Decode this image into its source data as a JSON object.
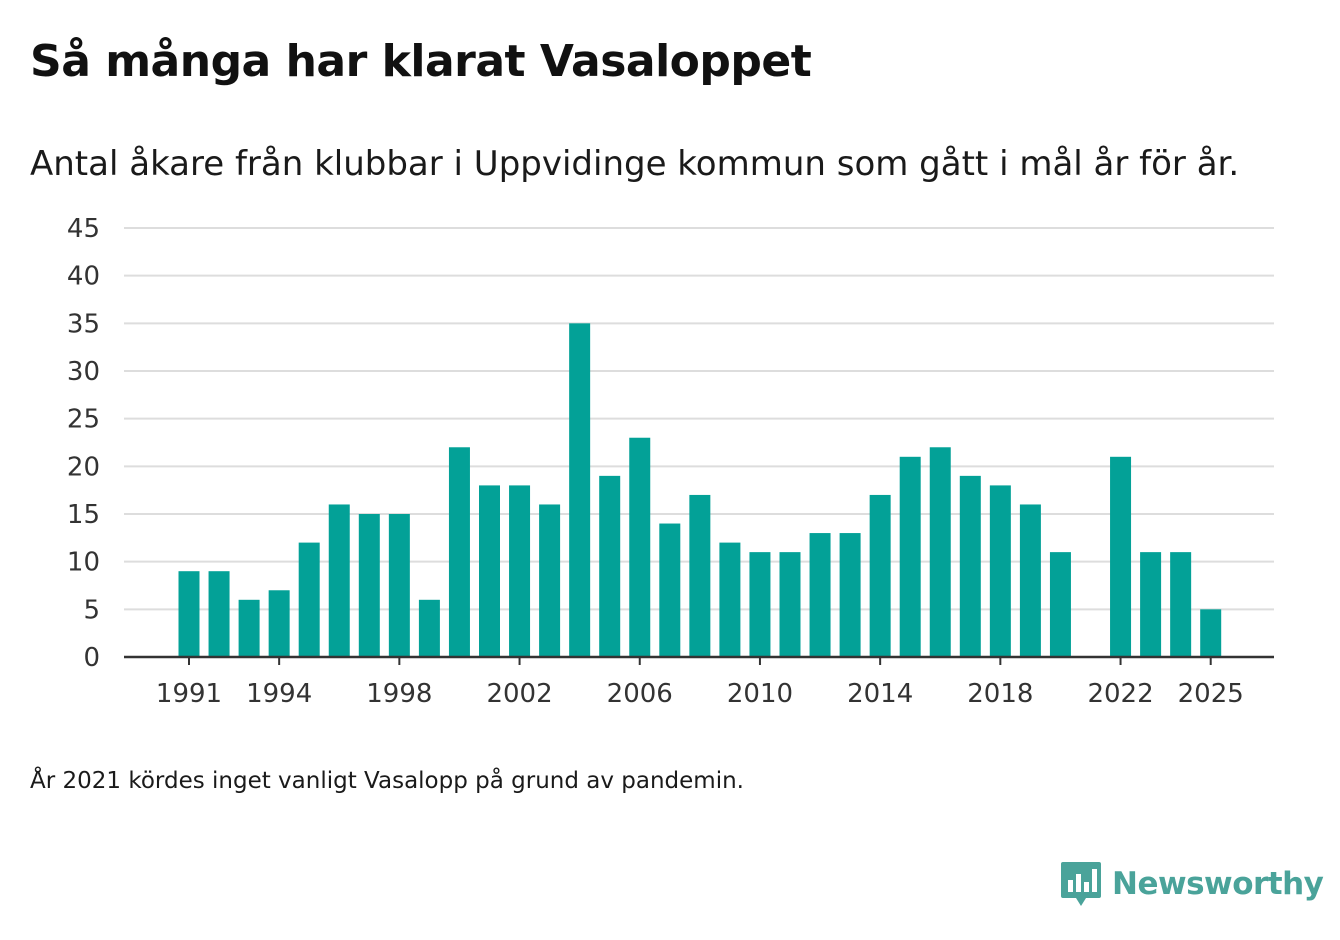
{
  "header": {
    "title": "Så många har klarat Vasaloppet",
    "subtitle": "Antal åkare från klubbar i Uppvidinge kommun som gått i mål år för år."
  },
  "footer": {
    "note": "År 2021 kördes inget vanligt Vasalopp på grund av pandemin.",
    "brand": "Newsworthy"
  },
  "colors": {
    "bar": "#03a197",
    "grid": "#dddddd",
    "axis": "#333333",
    "brand": "#4aa39a"
  },
  "chart_data": {
    "type": "bar",
    "title": "Så många har klarat Vasaloppet",
    "subtitle": "Antal åkare från klubbar i Uppvidinge kommun som gått i mål år för år.",
    "xlabel": "",
    "ylabel": "",
    "ylim": [
      0,
      45
    ],
    "yticks": [
      0,
      5,
      10,
      15,
      20,
      25,
      30,
      35,
      40,
      45
    ],
    "xtick_labels": [
      "1991",
      "1994",
      "1998",
      "2002",
      "2006",
      "2010",
      "2014",
      "2018",
      "2022",
      "2025"
    ],
    "grid": true,
    "categories": [
      1991,
      1992,
      1993,
      1994,
      1995,
      1996,
      1997,
      1998,
      1999,
      2000,
      2001,
      2002,
      2003,
      2004,
      2005,
      2006,
      2007,
      2008,
      2009,
      2010,
      2011,
      2012,
      2013,
      2014,
      2015,
      2016,
      2017,
      2018,
      2019,
      2020,
      2021,
      2022,
      2023,
      2024,
      2025
    ],
    "values": [
      9,
      9,
      6,
      7,
      12,
      16,
      15,
      15,
      6,
      22,
      18,
      18,
      16,
      35,
      19,
      23,
      14,
      17,
      12,
      11,
      11,
      13,
      13,
      17,
      21,
      22,
      19,
      18,
      16,
      11,
      null,
      21,
      11,
      11,
      5
    ]
  }
}
